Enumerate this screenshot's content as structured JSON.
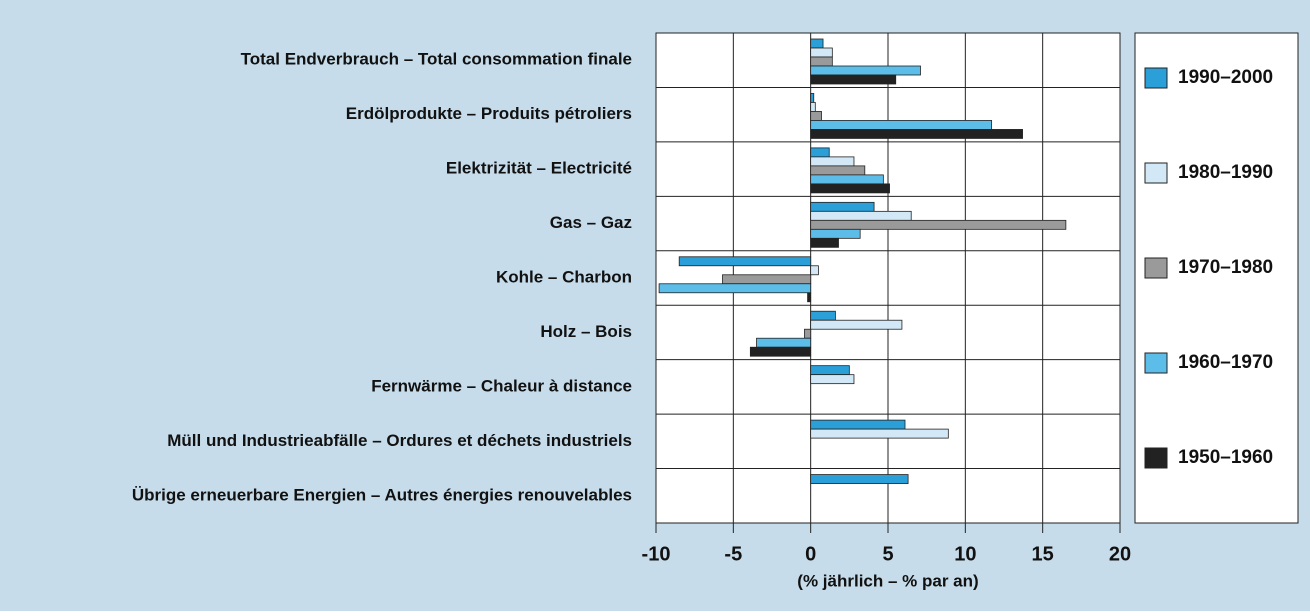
{
  "chart_data": {
    "type": "hbar",
    "categories": [
      "Total Endverbrauch – Total consommation finale",
      "Erdölprodukte – Produits pétroliers",
      "Elektrizität – Electricité",
      "Gas – Gaz",
      "Kohle – Charbon",
      "Holz – Bois",
      "Fernwärme – Chaleur à distance",
      "Müll und Industrieabfälle – Ordures et déchets industriels",
      "Übrige erneuerbare Energien – Autres énergies renouvelables"
    ],
    "series": [
      {
        "name": "1990–2000",
        "color": "#2a9fd8",
        "values": [
          0.8,
          0.2,
          1.2,
          4.1,
          -8.5,
          1.6,
          2.5,
          6.1,
          6.3
        ]
      },
      {
        "name": "1980–1990",
        "color": "#d2e8f6",
        "values": [
          1.4,
          0.3,
          2.8,
          6.5,
          0.5,
          5.9,
          2.8,
          8.9,
          null
        ]
      },
      {
        "name": "1970–1980",
        "color": "#9a9a9a",
        "values": [
          1.4,
          0.7,
          3.5,
          16.5,
          -5.7,
          -0.4,
          null,
          null,
          null
        ]
      },
      {
        "name": "1960–1970",
        "color": "#5cbde9",
        "values": [
          7.1,
          11.7,
          4.7,
          3.2,
          -9.8,
          -3.5,
          null,
          null,
          null
        ]
      },
      {
        "name": "1950–1960",
        "color": "#222222",
        "values": [
          5.5,
          13.7,
          5.1,
          1.8,
          -0.2,
          -3.9,
          null,
          null,
          null
        ]
      }
    ],
    "xlabel": "(% jährlich – % par an)",
    "xlim": [
      -10,
      20
    ],
    "xticks": [
      -10,
      -5,
      0,
      5,
      10,
      15,
      20
    ],
    "grid": true
  }
}
